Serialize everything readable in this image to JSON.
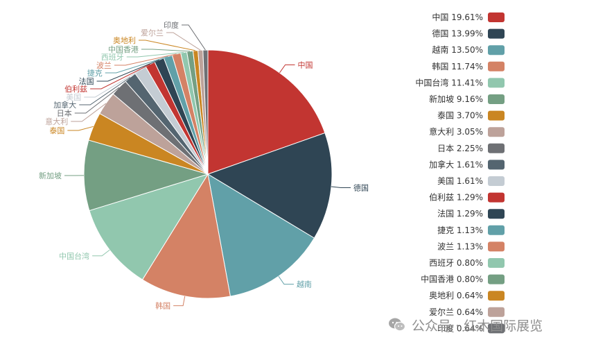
{
  "chart_data": {
    "type": "pie",
    "title": "",
    "legend_position": "right",
    "slices": [
      {
        "label": "中国",
        "value": 19.61,
        "percent_text": "19.61%",
        "color": "#c23531"
      },
      {
        "label": "德国",
        "value": 13.99,
        "percent_text": "13.99%",
        "color": "#2f4554"
      },
      {
        "label": "越南",
        "value": 13.5,
        "percent_text": "13.50%",
        "color": "#61a0a8"
      },
      {
        "label": "韩国",
        "value": 11.74,
        "percent_text": "11.74%",
        "color": "#d48265"
      },
      {
        "label": "中国台湾",
        "value": 11.41,
        "percent_text": "11.41%",
        "color": "#91c7ae"
      },
      {
        "label": "新加坡",
        "value": 9.16,
        "percent_text": "9.16%",
        "color": "#749f83"
      },
      {
        "label": "泰国",
        "value": 3.7,
        "percent_text": "3.70%",
        "color": "#ca8622"
      },
      {
        "label": "意大利",
        "value": 3.05,
        "percent_text": "3.05%",
        "color": "#bda29a"
      },
      {
        "label": "日本",
        "value": 2.25,
        "percent_text": "2.25%",
        "color": "#6e7074"
      },
      {
        "label": "加拿大",
        "value": 1.61,
        "percent_text": "1.61%",
        "color": "#546570"
      },
      {
        "label": "美国",
        "value": 1.61,
        "percent_text": "1.61%",
        "color": "#c4ccd3"
      },
      {
        "label": "伯利兹",
        "value": 1.29,
        "percent_text": "1.29%",
        "color": "#c23531"
      },
      {
        "label": "法国",
        "value": 1.29,
        "percent_text": "1.29%",
        "color": "#2f4554"
      },
      {
        "label": "捷克",
        "value": 1.13,
        "percent_text": "1.13%",
        "color": "#61a0a8"
      },
      {
        "label": "波兰",
        "value": 1.13,
        "percent_text": "1.13%",
        "color": "#d48265"
      },
      {
        "label": "西班牙",
        "value": 0.8,
        "percent_text": "0.80%",
        "color": "#91c7ae"
      },
      {
        "label": "中国香港",
        "value": 0.8,
        "percent_text": "0.80%",
        "color": "#749f83"
      },
      {
        "label": "奥地利",
        "value": 0.64,
        "percent_text": "0.64%",
        "color": "#ca8622"
      },
      {
        "label": "爱尔兰",
        "value": 0.64,
        "percent_text": "0.64%",
        "color": "#bda29a"
      },
      {
        "label": "印度",
        "value": 0.64,
        "percent_text": "0.64%",
        "color": "#6e7074"
      }
    ]
  },
  "watermark": {
    "text": "公众号 · 红木国际展览"
  }
}
